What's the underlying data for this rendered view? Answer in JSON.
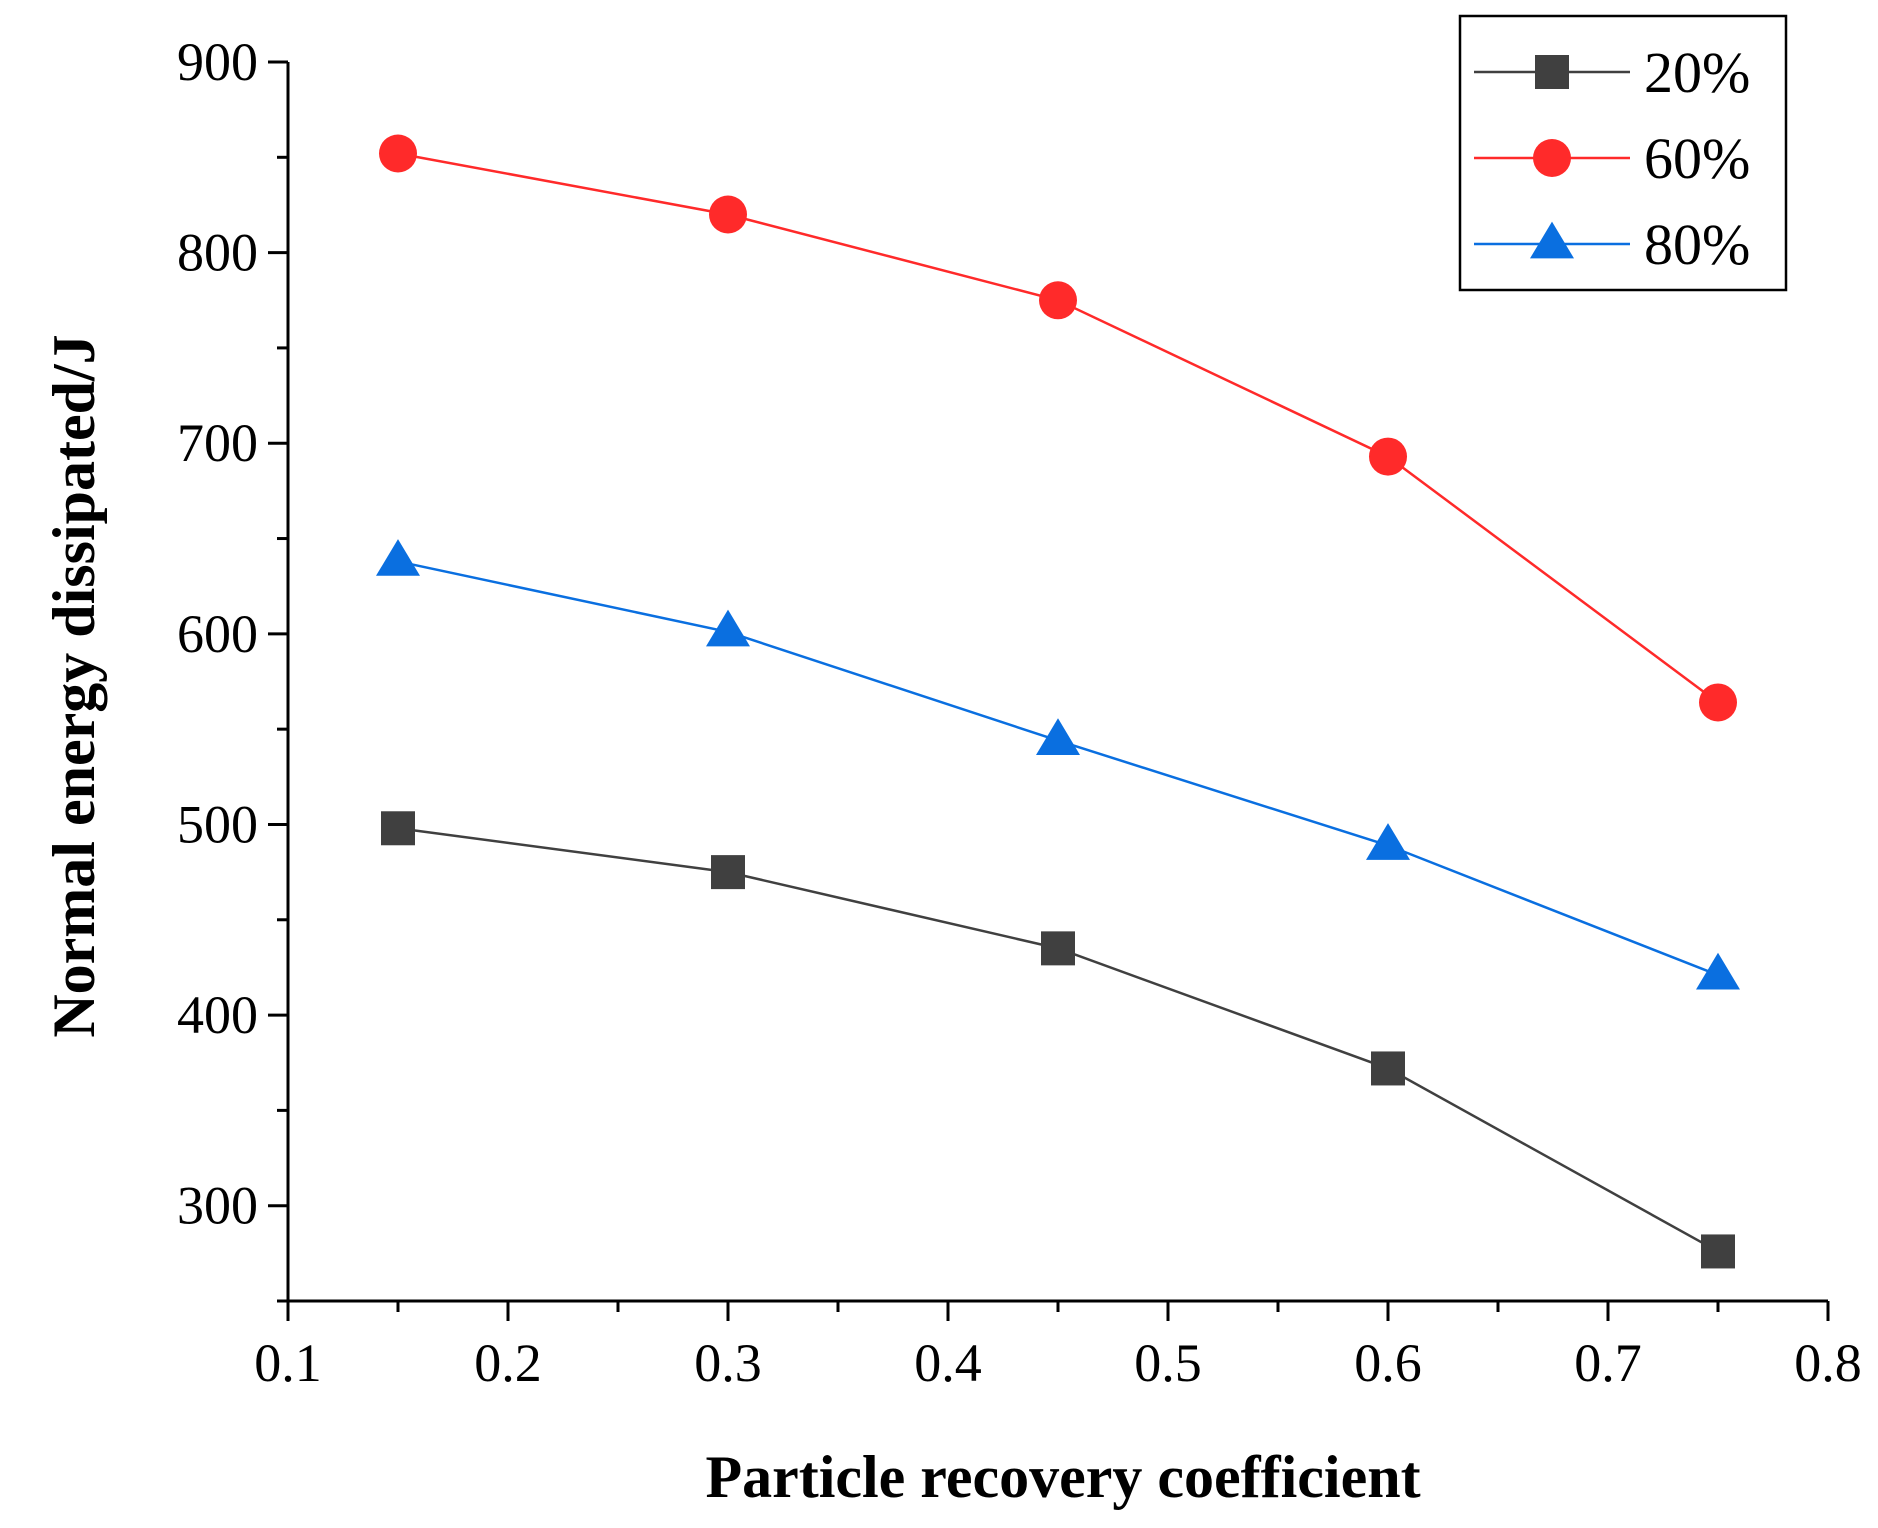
{
  "chart_data": {
    "type": "line",
    "title": "",
    "xlabel": "Particle recovery coefficient",
    "ylabel": "Normal energy dissipated/J",
    "xlim": [
      0.1,
      0.8
    ],
    "ylim": [
      250,
      900
    ],
    "x_ticks": [
      0.1,
      0.2,
      0.3,
      0.4,
      0.5,
      0.6,
      0.7,
      0.8
    ],
    "x_tick_labels": [
      "0.1",
      "0.2",
      "0.3",
      "0.4",
      "0.5",
      "0.6",
      "0.7",
      "0.8"
    ],
    "y_ticks": [
      300,
      400,
      500,
      600,
      700,
      800,
      900
    ],
    "y_tick_labels": [
      "300",
      "400",
      "500",
      "600",
      "700",
      "800",
      "900"
    ],
    "grid": false,
    "legend_position": "top-right",
    "x": [
      0.15,
      0.3,
      0.45,
      0.6,
      0.75
    ],
    "series": [
      {
        "name": "20%",
        "marker": "square",
        "color": "#404040",
        "values": [
          498,
          475,
          435,
          372,
          276
        ]
      },
      {
        "name": "60%",
        "marker": "circle",
        "color": "#ff2a2a",
        "values": [
          852,
          820,
          775,
          693,
          564
        ]
      },
      {
        "name": "80%",
        "marker": "triangle",
        "color": "#0a6fe0",
        "values": [
          638,
          601,
          544,
          489,
          421
        ]
      }
    ]
  }
}
